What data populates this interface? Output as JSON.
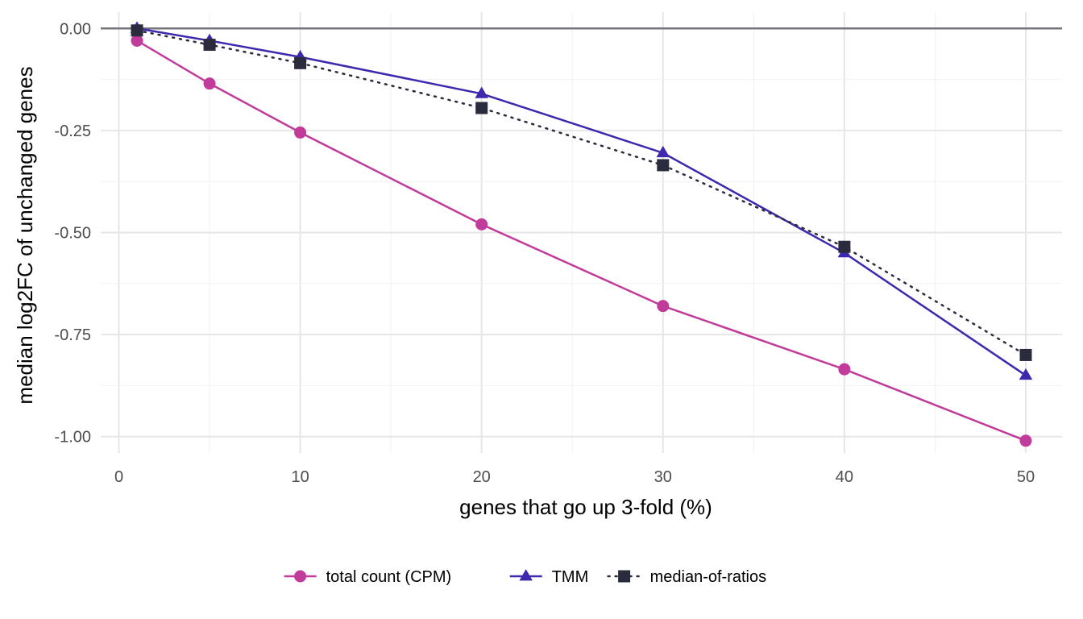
{
  "chart_data": {
    "type": "line",
    "title": "",
    "xlabel": "genes that go up 3-fold (%)",
    "ylabel": "median log2FC of unchanged genes",
    "xlim": [
      -1,
      52
    ],
    "ylim": [
      -1.04,
      0.04
    ],
    "x_ticks": [
      0,
      10,
      20,
      30,
      40,
      50
    ],
    "x_tick_labels": [
      "0",
      "10",
      "20",
      "30",
      "40",
      "50"
    ],
    "y_ticks": [
      0.0,
      -0.25,
      -0.5,
      -0.75,
      -1.0
    ],
    "y_tick_labels": [
      "0.00",
      "-0.25",
      "-0.50",
      "-0.75",
      "-1.00"
    ],
    "reference_line_y": 0,
    "grid": true,
    "legend_position": "bottom",
    "x": [
      1,
      5,
      10,
      20,
      30,
      40,
      50
    ],
    "series": [
      {
        "name": "total count (CPM)",
        "color": "#c13b9b",
        "marker": "circle",
        "line_style": "solid",
        "values": [
          -0.03,
          -0.135,
          -0.255,
          -0.48,
          -0.68,
          -0.835,
          -1.01
        ]
      },
      {
        "name": "TMM",
        "color": "#3f28ae",
        "marker": "triangle",
        "line_style": "solid",
        "values": [
          0.0,
          -0.03,
          -0.07,
          -0.16,
          -0.305,
          -0.55,
          -0.85
        ]
      },
      {
        "name": "median-of-ratios",
        "color": "#2b2b3e",
        "marker": "square",
        "line_style": "dotted",
        "values": [
          -0.005,
          -0.04,
          -0.085,
          -0.195,
          -0.335,
          -0.535,
          -0.8
        ]
      }
    ]
  }
}
